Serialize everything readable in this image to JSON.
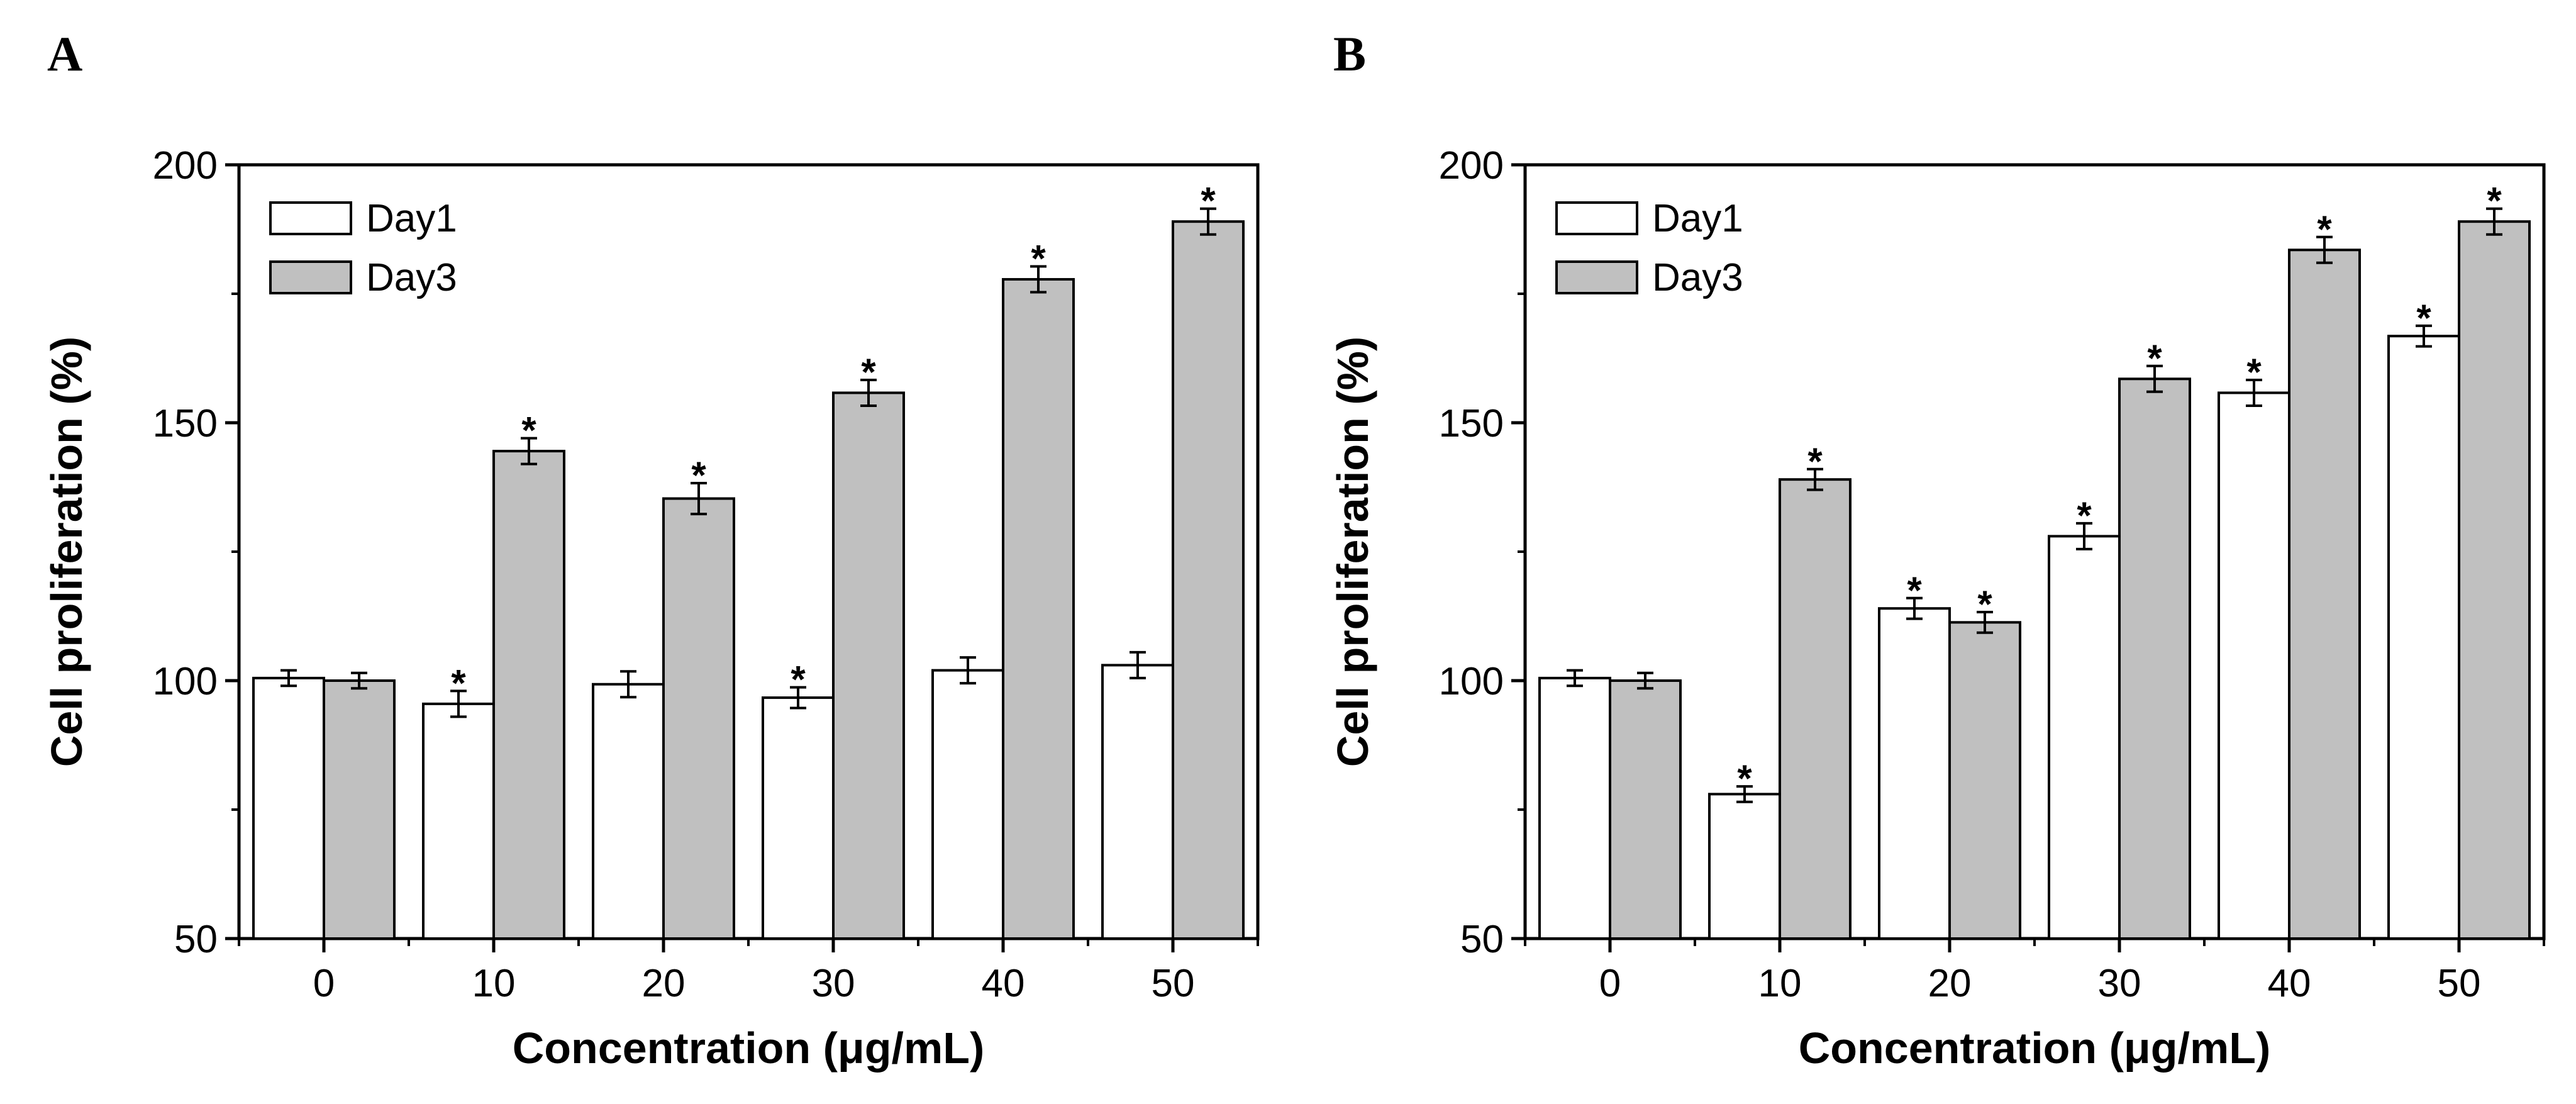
{
  "chart_data": [
    {
      "panel": "A",
      "type": "bar",
      "categories": [
        "0",
        "10",
        "20",
        "30",
        "40",
        "50"
      ],
      "series": [
        {
          "name": "Day1",
          "values": [
            100.5,
            95.5,
            99.3,
            96.7,
            102.0,
            103.0
          ],
          "errors": [
            1.5,
            2.5,
            2.5,
            2.0,
            2.5,
            2.5
          ],
          "significant": [
            false,
            true,
            false,
            true,
            false,
            false
          ],
          "color": "#ffffff"
        },
        {
          "name": "Day3",
          "values": [
            100.0,
            144.5,
            135.3,
            155.8,
            177.8,
            189.0
          ],
          "errors": [
            1.5,
            2.5,
            3.0,
            2.5,
            2.5,
            2.5
          ],
          "significant": [
            false,
            true,
            true,
            true,
            true,
            true
          ],
          "color": "#c0c0c0"
        }
      ],
      "xlabel": "Concentration (μg/mL)",
      "ylabel": "Cell proliferation (%)",
      "ylim": [
        50,
        200
      ],
      "yticks": [
        "50",
        "100",
        "150",
        "200"
      ],
      "significance_marker": "*",
      "legend_position": "top-left",
      "grid": false
    },
    {
      "panel": "B",
      "type": "bar",
      "categories": [
        "0",
        "10",
        "20",
        "30",
        "40",
        "50"
      ],
      "series": [
        {
          "name": "Day1",
          "values": [
            100.5,
            78.0,
            114.0,
            128.0,
            155.8,
            166.8
          ],
          "errors": [
            1.5,
            1.5,
            2.0,
            2.5,
            2.5,
            2.0
          ],
          "significant": [
            false,
            true,
            true,
            true,
            true,
            true
          ],
          "color": "#ffffff"
        },
        {
          "name": "Day3",
          "values": [
            100.0,
            139.0,
            111.3,
            158.5,
            183.5,
            189.0
          ],
          "errors": [
            1.5,
            2.0,
            2.0,
            2.5,
            2.5,
            2.5
          ],
          "significant": [
            false,
            true,
            true,
            true,
            true,
            true
          ],
          "color": "#c0c0c0"
        }
      ],
      "xlabel": "Concentration (μg/mL)",
      "ylabel": "Cell proliferation (%)",
      "ylim": [
        50,
        200
      ],
      "yticks": [
        "50",
        "100",
        "150",
        "200"
      ],
      "significance_marker": "*",
      "legend_position": "top-left",
      "grid": false
    }
  ]
}
